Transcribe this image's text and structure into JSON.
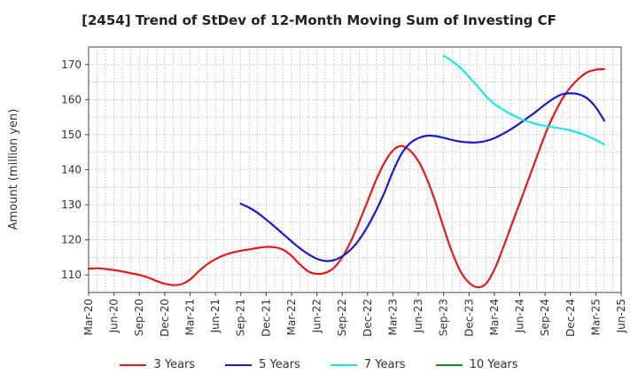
{
  "chart_data": {
    "type": "line",
    "title": "[2454]  Trend of StDev of 12-Month Moving Sum of Investing CF",
    "xlabel": "",
    "ylabel": "Amount (million yen)",
    "ylim": [
      105,
      175
    ],
    "yticks": [
      110,
      120,
      130,
      140,
      150,
      160,
      170
    ],
    "xticks": [
      "Mar-20",
      "Jun-20",
      "Sep-20",
      "Dec-20",
      "Mar-21",
      "Jun-21",
      "Sep-21",
      "Dec-21",
      "Mar-22",
      "Jun-22",
      "Sep-22",
      "Dec-22",
      "Mar-23",
      "Jun-23",
      "Sep-23",
      "Dec-23",
      "Mar-24",
      "Jun-24",
      "Sep-24",
      "Dec-24",
      "Mar-25",
      "Jun-25"
    ],
    "grid": true,
    "legend_position": "bottom",
    "series": [
      {
        "name": "3 Years",
        "color": "#e01b1b",
        "points": [
          [
            "Mar-20",
            111.8
          ],
          [
            "Apr-20",
            111.9
          ],
          [
            "May-20",
            111.7
          ],
          [
            "Jun-20",
            111.4
          ],
          [
            "Jul-20",
            111.0
          ],
          [
            "Aug-20",
            110.5
          ],
          [
            "Sep-20",
            110.0
          ],
          [
            "Oct-20",
            109.3
          ],
          [
            "Nov-20",
            108.3
          ],
          [
            "Dec-20",
            107.5
          ],
          [
            "Jan-21",
            107.1
          ],
          [
            "Feb-21",
            107.4
          ],
          [
            "Mar-21",
            108.7
          ],
          [
            "Apr-21",
            111.0
          ],
          [
            "May-21",
            113.0
          ],
          [
            "Jun-21",
            114.5
          ],
          [
            "Jul-21",
            115.6
          ],
          [
            "Aug-21",
            116.4
          ],
          [
            "Sep-21",
            116.9
          ],
          [
            "Oct-21",
            117.3
          ],
          [
            "Nov-21",
            117.7
          ],
          [
            "Dec-21",
            118.0
          ],
          [
            "Jan-22",
            117.9
          ],
          [
            "Feb-22",
            117.2
          ],
          [
            "Mar-22",
            115.5
          ],
          [
            "Apr-22",
            113.0
          ],
          [
            "May-22",
            111.0
          ],
          [
            "Jun-22",
            110.3
          ],
          [
            "Jul-22",
            110.6
          ],
          [
            "Aug-22",
            112.0
          ],
          [
            "Sep-22",
            115.0
          ],
          [
            "Oct-22",
            119.5
          ],
          [
            "Nov-22",
            125.0
          ],
          [
            "Dec-22",
            131.0
          ],
          [
            "Jan-23",
            137.0
          ],
          [
            "Feb-23",
            142.0
          ],
          [
            "Mar-23",
            145.5
          ],
          [
            "Apr-23",
            146.8
          ],
          [
            "May-23",
            145.5
          ],
          [
            "Jun-23",
            142.5
          ],
          [
            "Jul-23",
            137.5
          ],
          [
            "Aug-23",
            131.0
          ],
          [
            "Sep-23",
            123.5
          ],
          [
            "Oct-23",
            116.5
          ],
          [
            "Nov-23",
            111.0
          ],
          [
            "Dec-23",
            107.8
          ],
          [
            "Jan-24",
            106.5
          ],
          [
            "Feb-24",
            107.5
          ],
          [
            "Mar-24",
            111.5
          ],
          [
            "Apr-24",
            117.5
          ],
          [
            "May-24",
            124.0
          ],
          [
            "Jun-24",
            130.5
          ],
          [
            "Jul-24",
            137.0
          ],
          [
            "Aug-24",
            143.5
          ],
          [
            "Sep-24",
            150.0
          ],
          [
            "Oct-24",
            155.5
          ],
          [
            "Nov-24",
            160.0
          ],
          [
            "Dec-24",
            163.5
          ],
          [
            "Jan-25",
            166.0
          ],
          [
            "Feb-25",
            167.8
          ],
          [
            "Mar-25",
            168.5
          ],
          [
            "Apr-25",
            168.7
          ]
        ]
      },
      {
        "name": "5 Years",
        "color": "#1a1acc",
        "points": [
          [
            "Sep-21",
            130.3
          ],
          [
            "Oct-21",
            129.2
          ],
          [
            "Nov-21",
            127.7
          ],
          [
            "Dec-21",
            125.8
          ],
          [
            "Jan-22",
            123.8
          ],
          [
            "Feb-22",
            121.7
          ],
          [
            "Mar-22",
            119.6
          ],
          [
            "Apr-22",
            117.6
          ],
          [
            "May-22",
            115.9
          ],
          [
            "Jun-22",
            114.6
          ],
          [
            "Jul-22",
            114.0
          ],
          [
            "Aug-22",
            114.2
          ],
          [
            "Sep-22",
            115.3
          ],
          [
            "Oct-22",
            117.2
          ],
          [
            "Nov-22",
            120.0
          ],
          [
            "Dec-22",
            123.8
          ],
          [
            "Jan-23",
            128.3
          ],
          [
            "Feb-23",
            133.5
          ],
          [
            "Mar-23",
            139.5
          ],
          [
            "Apr-23",
            144.5
          ],
          [
            "May-23",
            147.5
          ],
          [
            "Jun-23",
            149.0
          ],
          [
            "Jul-23",
            149.7
          ],
          [
            "Aug-23",
            149.6
          ],
          [
            "Sep-23",
            149.1
          ],
          [
            "Oct-23",
            148.5
          ],
          [
            "Nov-23",
            148.0
          ],
          [
            "Dec-23",
            147.8
          ],
          [
            "Jan-24",
            147.8
          ],
          [
            "Feb-24",
            148.2
          ],
          [
            "Mar-24",
            149.0
          ],
          [
            "Apr-24",
            150.2
          ],
          [
            "May-24",
            151.6
          ],
          [
            "Jun-24",
            153.2
          ],
          [
            "Jul-24",
            154.9
          ],
          [
            "Aug-24",
            156.7
          ],
          [
            "Sep-24",
            158.6
          ],
          [
            "Oct-24",
            160.3
          ],
          [
            "Nov-24",
            161.5
          ],
          [
            "Dec-24",
            161.8
          ],
          [
            "Jan-25",
            161.5
          ],
          [
            "Feb-25",
            160.3
          ],
          [
            "Mar-25",
            157.8
          ],
          [
            "Apr-25",
            154.0
          ]
        ]
      },
      {
        "name": "7 Years",
        "color": "#1ee6e6",
        "points": [
          [
            "Sep-23",
            172.5
          ],
          [
            "Oct-23",
            171.0
          ],
          [
            "Nov-23",
            169.0
          ],
          [
            "Dec-23",
            166.5
          ],
          [
            "Jan-24",
            163.8
          ],
          [
            "Feb-24",
            161.0
          ],
          [
            "Mar-24",
            158.8
          ],
          [
            "Apr-24",
            157.2
          ],
          [
            "May-24",
            155.8
          ],
          [
            "Jun-24",
            154.6
          ],
          [
            "Jul-24",
            153.7
          ],
          [
            "Aug-24",
            153.0
          ],
          [
            "Sep-24",
            152.5
          ],
          [
            "Oct-24",
            152.1
          ],
          [
            "Nov-24",
            151.7
          ],
          [
            "Dec-24",
            151.2
          ],
          [
            "Jan-25",
            150.5
          ],
          [
            "Feb-25",
            149.6
          ],
          [
            "Mar-25",
            148.5
          ],
          [
            "Apr-25",
            147.2
          ]
        ]
      },
      {
        "name": "10 Years",
        "color": "#1f8a1f",
        "points": []
      }
    ]
  }
}
